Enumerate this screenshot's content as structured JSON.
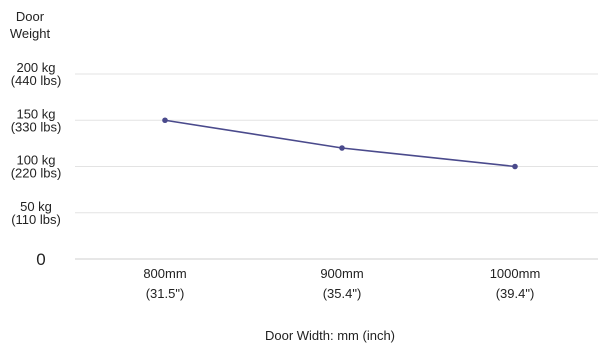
{
  "chart_data": {
    "type": "line",
    "y_title": [
      "Door",
      "Weight"
    ],
    "x_title": "Door Width: mm (inch)",
    "categories": [
      [
        "800mm",
        "(31.5\")"
      ],
      [
        "900mm",
        "(35.4\")"
      ],
      [
        "1000mm",
        "(39.4\")"
      ]
    ],
    "y_ticks": [
      {
        "value": 200,
        "lines": [
          "200 kg",
          "(440 lbs)"
        ]
      },
      {
        "value": 150,
        "lines": [
          "150 kg",
          "(330 lbs)"
        ]
      },
      {
        "value": 100,
        "lines": [
          "100 kg",
          "(220 lbs)"
        ]
      },
      {
        "value": 50,
        "lines": [
          "50 kg",
          "(110 lbs)"
        ]
      },
      {
        "value": 0,
        "lines": [
          "0"
        ]
      }
    ],
    "ylim": [
      0,
      200
    ],
    "grid": true,
    "series": [
      {
        "values": [
          150,
          120,
          100
        ],
        "color": "#4a4a8c"
      }
    ]
  }
}
